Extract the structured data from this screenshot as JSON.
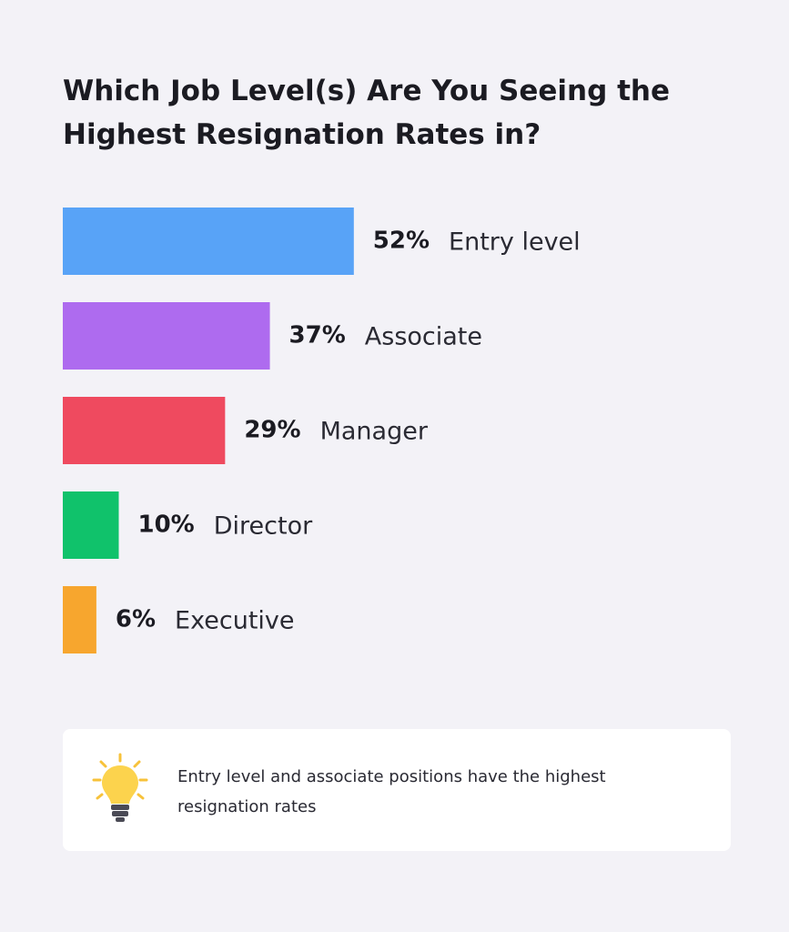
{
  "chart_data": {
    "type": "bar",
    "orientation": "horizontal",
    "title": "Which Job Level(s) Are You Seeing the Highest Resignation Rates in?",
    "categories": [
      "Entry level",
      "Associate",
      "Manager",
      "Director",
      "Executive"
    ],
    "values": [
      52,
      37,
      29,
      10,
      6
    ],
    "value_labels": [
      "52%",
      "37%",
      "29%",
      "10%",
      "6%"
    ],
    "colors": [
      "#58a3f7",
      "#ae6bef",
      "#ef4a5f",
      "#10c26b",
      "#f7a62e"
    ],
    "note": "Entry level and associate positions have the highest resignation rates"
  }
}
